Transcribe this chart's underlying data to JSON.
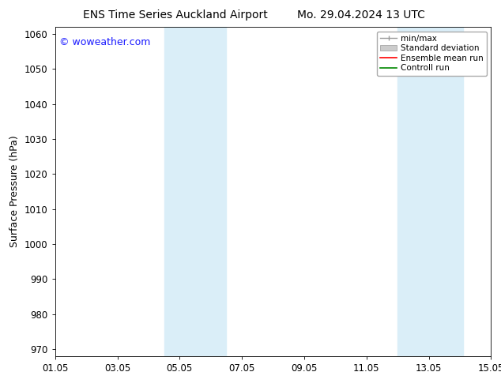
{
  "title_left": "ENS Time Series Auckland Airport",
  "title_right": "Mo. 29.04.2024 13 UTC",
  "ylabel": "Surface Pressure (hPa)",
  "ylim": [
    968,
    1062
  ],
  "yticks": [
    970,
    980,
    990,
    1000,
    1010,
    1020,
    1030,
    1040,
    1050,
    1060
  ],
  "xlim": [
    0,
    14
  ],
  "xtick_labels": [
    "01.05",
    "03.05",
    "05.05",
    "07.05",
    "09.05",
    "11.05",
    "13.05",
    "15.05"
  ],
  "xtick_positions": [
    0,
    2,
    4,
    6,
    8,
    10,
    12,
    14
  ],
  "shaded_bands": [
    {
      "x_start": 3.5,
      "x_end": 5.5,
      "color": "#daeef8"
    },
    {
      "x_start": 11.0,
      "x_end": 13.1,
      "color": "#daeef8"
    }
  ],
  "copyright_text": "© woweather.com",
  "copyright_color": "#1a1aff",
  "background_color": "#ffffff",
  "legend_items": [
    {
      "label": "min/max",
      "color": "#999999",
      "style": "errorbar"
    },
    {
      "label": "Standard deviation",
      "color": "#cccccc",
      "style": "band"
    },
    {
      "label": "Ensemble mean run",
      "color": "#ff0000",
      "style": "line"
    },
    {
      "label": "Controll run",
      "color": "#008800",
      "style": "line"
    }
  ],
  "title_fontsize": 10,
  "tick_fontsize": 8.5,
  "ylabel_fontsize": 9,
  "legend_fontsize": 7.5,
  "copyright_fontsize": 9
}
